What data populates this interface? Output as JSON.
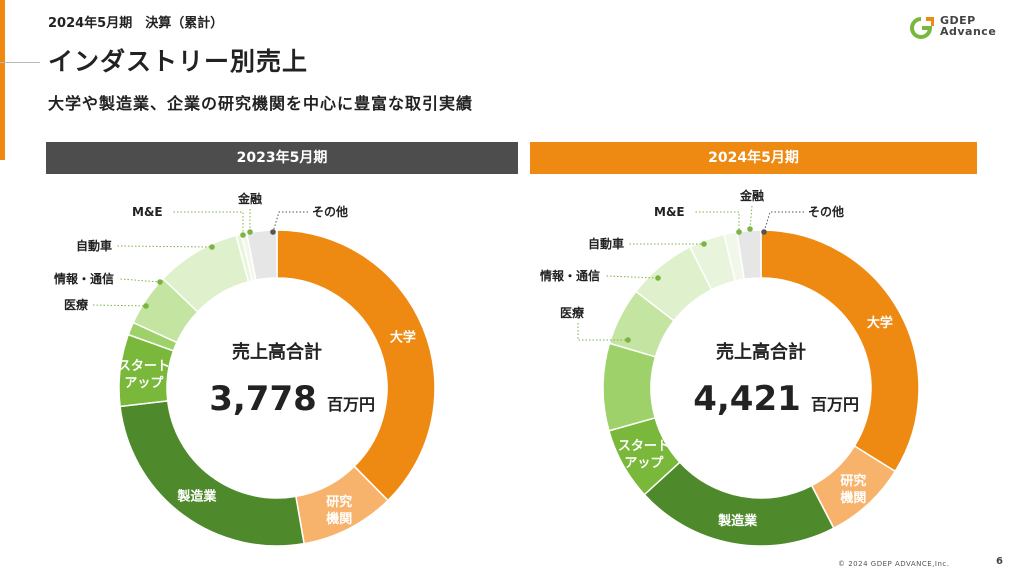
{
  "header": {
    "subhead": "2024年5月期　決算（累計）",
    "title": "インダストリー別売上",
    "tagline": "大学や製造業、企業の研究機関を中心に豊富な取引実績"
  },
  "logo": {
    "line1": "GDEP",
    "line2": "Advance",
    "icon": "gdep-logo-icon"
  },
  "colors": {
    "accent": "#ee8a12",
    "dark": "#4d4d4d",
    "大学": "#ee8a12",
    "研究機関": "#f7b36b",
    "製造業": "#4e8a2c",
    "スタートアップ": "#79b83a",
    "医療": "#9fd16b",
    "情報・通信": "#c4e4a1",
    "自動車": "#dff0cc",
    "M&E": "#e8f5dc",
    "金融": "#f1f8ea",
    "その他": "#e6e6e6"
  },
  "chart_data": [
    {
      "type": "pie",
      "title": "2023年5月期",
      "center_label": "売上高合計",
      "center_value": "3,778",
      "center_unit": "百万円",
      "categories": [
        "大学",
        "研究機関",
        "製造業",
        "スタートアップ",
        "医療",
        "情報・通信",
        "自動車",
        "M&E",
        "金融",
        "その他"
      ],
      "values": [
        34.3,
        8.8,
        23.6,
        6.7,
        1.2,
        4.9,
        7.9,
        0.5,
        0.5,
        2.8
      ],
      "inside_labels": {
        "大学": "大学",
        "研究機関": "研究\n機関",
        "製造業": "製造業",
        "スタートアップ": "スタート\nアップ"
      },
      "outside_labels": [
        "医療",
        "情報・通信",
        "自動車",
        "M&E",
        "金融",
        "その他"
      ]
    },
    {
      "type": "pie",
      "title": "2024年5月期",
      "center_label": "売上高合計",
      "center_value": "4,421",
      "center_unit": "百万円",
      "categories": [
        "大学",
        "研究機関",
        "製造業",
        "スタートアップ",
        "医療",
        "情報・通信",
        "自動車",
        "M&E",
        "金融",
        "その他"
      ],
      "values": [
        33.3,
        8.4,
        20.5,
        7.3,
        8.8,
        5.8,
        7.0,
        3.6,
        1.3,
        2.4
      ],
      "inside_labels": {
        "大学": "大学",
        "研究機関": "研究\n機関",
        "製造業": "製造業",
        "スタートアップ": "スタート\nアップ"
      },
      "outside_labels": [
        "医療",
        "情報・通信",
        "自動車",
        "M&E",
        "金融",
        "その他"
      ]
    }
  ],
  "footer": {
    "copyright": "© 2024 GDEP ADVANCE,Inc.",
    "page": "6"
  }
}
